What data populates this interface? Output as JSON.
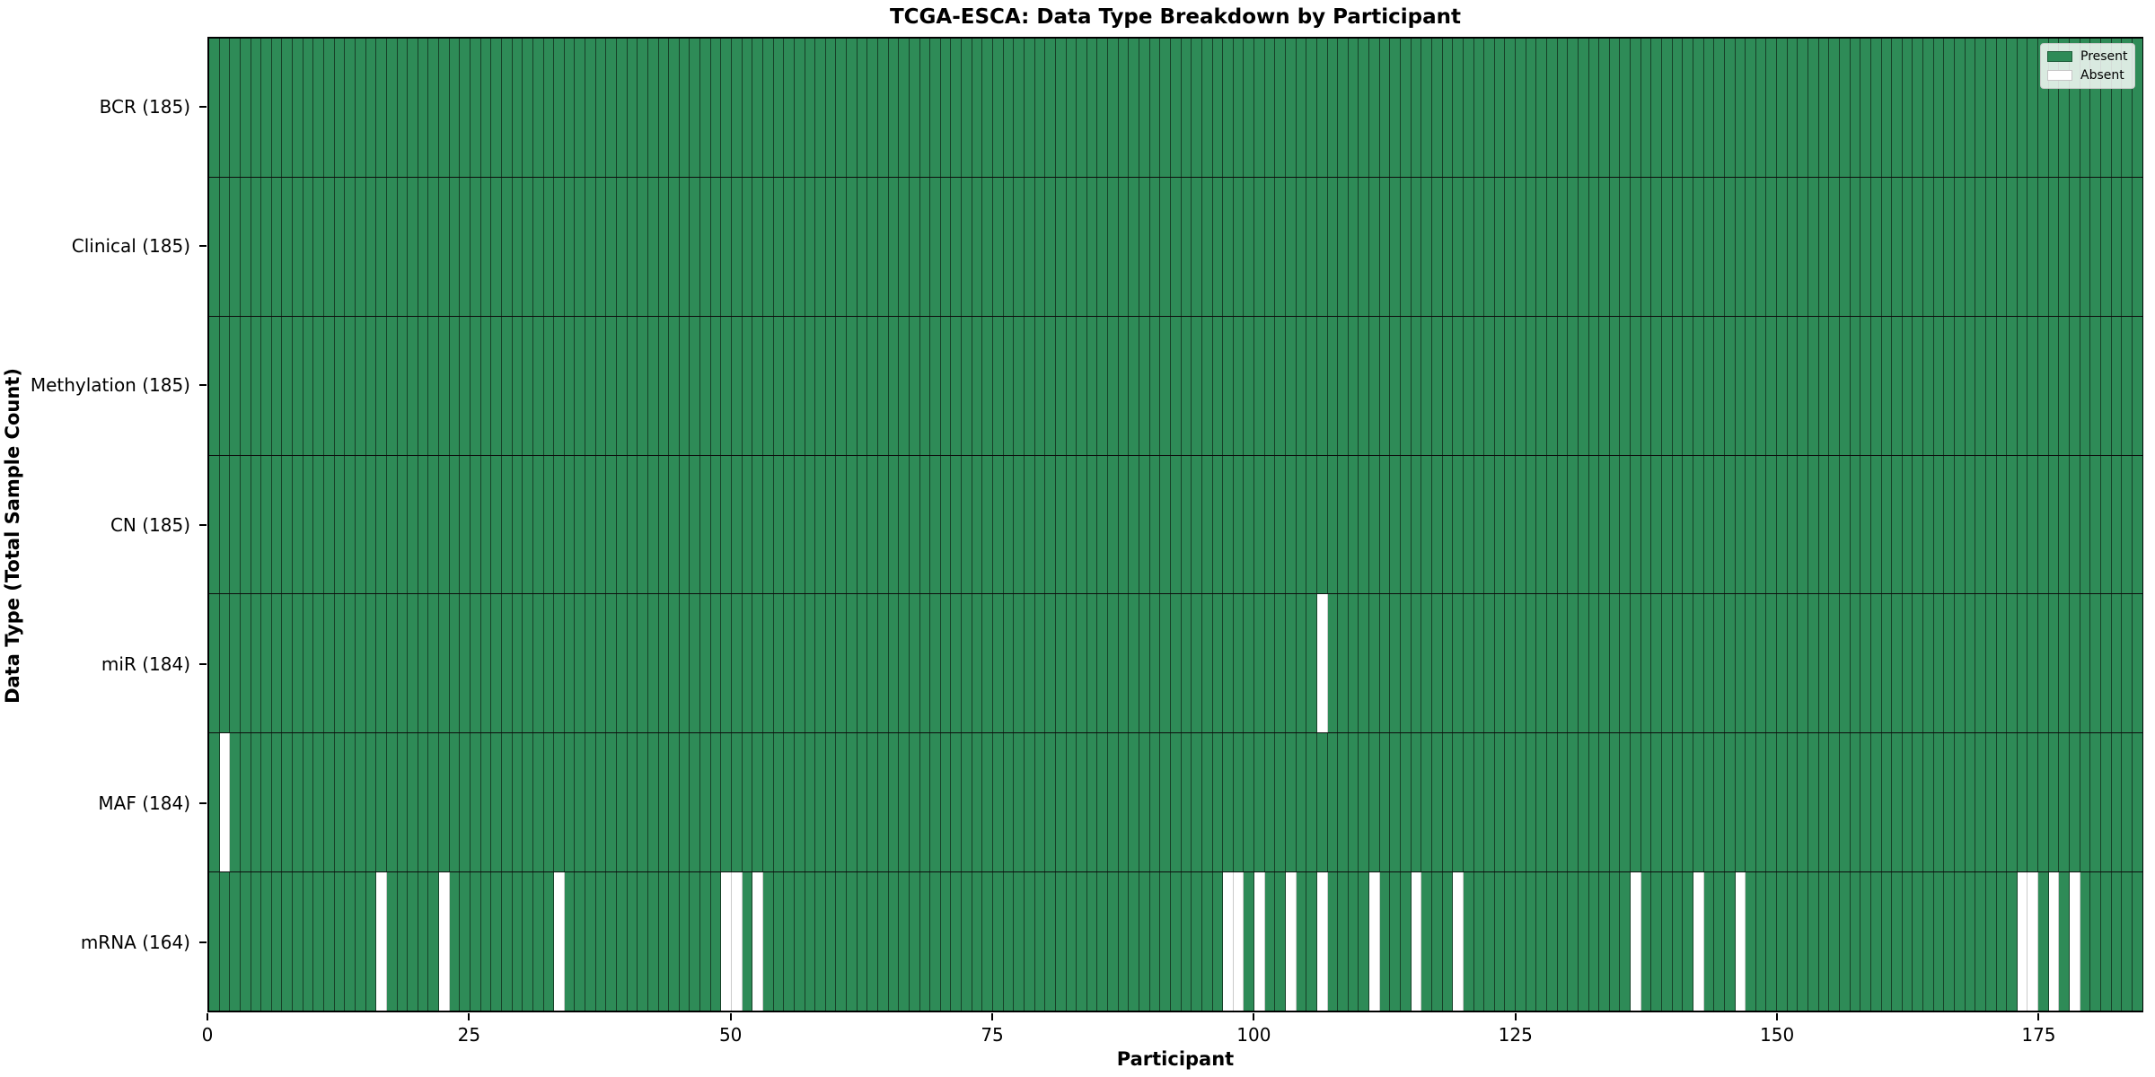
{
  "chart_data": {
    "type": "heatmap",
    "title": "TCGA-ESCA: Data Type Breakdown by Participant",
    "xlabel": "Participant",
    "ylabel": "Data Type (Total Sample Count)",
    "n_participants": 185,
    "x_axis_range": [
      0,
      185
    ],
    "x_ticks": [
      0,
      25,
      50,
      75,
      100,
      125,
      150,
      175
    ],
    "grid": "cell-edges",
    "legend_position": "upper right",
    "present_color": "#2e8b57",
    "absent_color": "#ffffff",
    "legend": {
      "present_label": "Present",
      "absent_label": "Absent"
    },
    "rows": [
      {
        "name": "BCR",
        "label": "BCR (185)",
        "count": 185,
        "absent_participants": []
      },
      {
        "name": "Clinical",
        "label": "Clinical (185)",
        "count": 185,
        "absent_participants": []
      },
      {
        "name": "Methylation",
        "label": "Methylation (185)",
        "count": 185,
        "absent_participants": []
      },
      {
        "name": "CN",
        "label": "CN (185)",
        "count": 185,
        "absent_participants": []
      },
      {
        "name": "miR",
        "label": "miR (184)",
        "count": 184,
        "absent_participants": [
          106
        ]
      },
      {
        "name": "MAF",
        "label": "MAF (184)",
        "count": 184,
        "absent_participants": [
          1
        ]
      },
      {
        "name": "mRNA",
        "label": "mRNA (164)",
        "count": 164,
        "absent_participants": [
          16,
          22,
          33,
          49,
          50,
          52,
          97,
          98,
          100,
          103,
          106,
          111,
          115,
          119,
          136,
          142,
          146,
          173,
          174,
          176,
          178
        ]
      }
    ]
  }
}
